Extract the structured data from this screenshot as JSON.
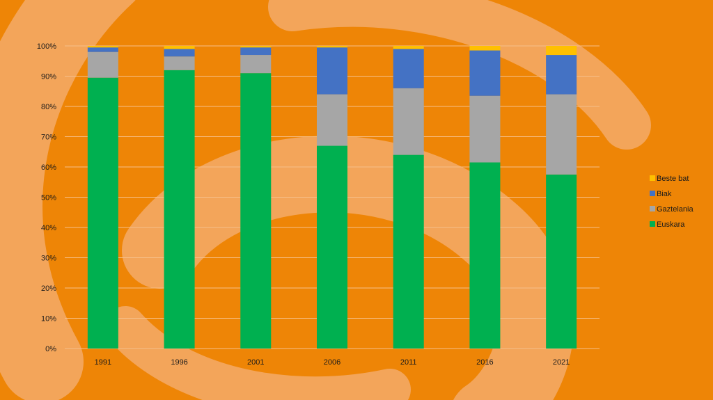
{
  "colors": {
    "background": "#EE8506",
    "swirl": "#F3A55A",
    "gridline": "#F6C08A"
  },
  "chart_data": {
    "type": "bar",
    "stacked": true,
    "categories": [
      "1991",
      "1996",
      "2001",
      "2006",
      "2011",
      "2016",
      "2021"
    ],
    "series": [
      {
        "name": "Euskara",
        "color": "#00B050",
        "values": [
          89.5,
          92.0,
          91.0,
          67.0,
          64.0,
          61.5,
          57.5
        ]
      },
      {
        "name": "Gaztelania",
        "color": "#A6A6A6",
        "values": [
          8.5,
          4.5,
          6.0,
          17.0,
          22.0,
          22.0,
          26.5
        ]
      },
      {
        "name": "Biak",
        "color": "#4472C4",
        "values": [
          1.5,
          2.5,
          2.5,
          15.5,
          13.0,
          15.0,
          13.0
        ]
      },
      {
        "name": "Beste bat",
        "color": "#FFC000",
        "values": [
          0.5,
          1.0,
          0.5,
          0.5,
          1.0,
          1.5,
          3.0
        ]
      }
    ],
    "yticks": [
      "0%",
      "10%",
      "20%",
      "30%",
      "40%",
      "50%",
      "60%",
      "70%",
      "80%",
      "90%",
      "100%"
    ],
    "ylim": [
      0,
      100
    ],
    "grid": true,
    "legend_position": "right",
    "legend_order": [
      "Beste bat",
      "Biak",
      "Gaztelania",
      "Euskara"
    ]
  }
}
